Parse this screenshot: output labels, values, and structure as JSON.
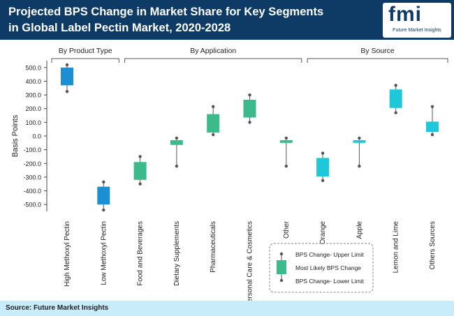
{
  "header": {
    "title": "Projected BPS Change in Market Share for Key Segments in Global Label Pectin Market, 2020-2028",
    "logo_text": "fmi",
    "logo_subtitle": "Future Market Insights",
    "header_color": "#0d3b66"
  },
  "footer": {
    "source": "Source: Future Market Insights",
    "footer_color": "#c8ecfa"
  },
  "chart_data": {
    "type": "boxplot",
    "ylabel": "Basis Points",
    "ylim": [
      -550,
      550
    ],
    "yticks": [
      500,
      400,
      300,
      200,
      100,
      0,
      -100,
      -200,
      -300,
      -400,
      -500
    ],
    "ytick_labels": [
      "500.0",
      "400.0",
      "300.0",
      "200.0",
      "100.0",
      "0.0",
      "-100.0",
      "-200.0",
      "-300.0",
      "-400.0",
      "-500.0"
    ],
    "groups": [
      {
        "label": "By Product Type",
        "start": 0,
        "end": 1
      },
      {
        "label": "By Application",
        "start": 2,
        "end": 6
      },
      {
        "label": "By Source",
        "start": 7,
        "end": 10
      }
    ],
    "categories": [
      {
        "name": "High Methoxyl Pectin",
        "upper": 520,
        "box_top": 500,
        "box_bottom": 370,
        "lower": 325,
        "color": "#1a8fd1"
      },
      {
        "name": "Low Methoxyl Pectin",
        "upper": -335,
        "box_top": -370,
        "box_bottom": -500,
        "lower": -540,
        "color": "#1a8fd1"
      },
      {
        "name": "Food and Beverages",
        "upper": -150,
        "box_top": -190,
        "box_bottom": -320,
        "lower": -350,
        "color": "#3dba8c"
      },
      {
        "name": "Dietary Supplements",
        "upper": -15,
        "box_top": -30,
        "box_bottom": -65,
        "lower": -220,
        "color": "#3dba8c"
      },
      {
        "name": "Pharmaceuticals",
        "upper": 215,
        "box_top": 160,
        "box_bottom": 25,
        "lower": 10,
        "color": "#3dba8c"
      },
      {
        "name": "Personal Care & Cosmetics",
        "upper": 300,
        "box_top": 265,
        "box_bottom": 135,
        "lower": 100,
        "color": "#3dba8c"
      },
      {
        "name": "Other",
        "upper": -15,
        "box_top": -30,
        "box_bottom": -50,
        "lower": -220,
        "color": "#3dba8c"
      },
      {
        "name": "Orange",
        "upper": -125,
        "box_top": -160,
        "box_bottom": -295,
        "lower": -325,
        "color": "#1ec8d9"
      },
      {
        "name": "Apple",
        "upper": -15,
        "box_top": -30,
        "box_bottom": -50,
        "lower": -220,
        "color": "#1ec8d9"
      },
      {
        "name": "Lemon and Lime",
        "upper": 370,
        "box_top": 340,
        "box_bottom": 205,
        "lower": 170,
        "color": "#1ec8d9"
      },
      {
        "name": "Others Sources",
        "upper": 215,
        "box_top": 105,
        "box_bottom": 30,
        "lower": 10,
        "color": "#1ec8d9"
      }
    ],
    "legend": {
      "placement": "bottom-center",
      "upper": "BPS Change- Upper Limit",
      "likely": "Most Likely BPS Change",
      "lower": "BPS Change- Lower Limit"
    }
  }
}
